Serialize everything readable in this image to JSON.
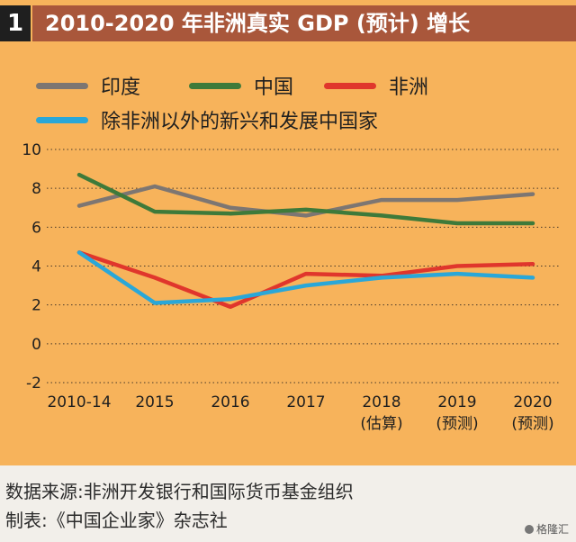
{
  "badge": "1",
  "title": "2010-2020 年非洲真实 GDP (预计) 增长",
  "chart_data": {
    "type": "line",
    "title": "2010-2020 年非洲真实 GDP (预计) 增长",
    "xlabel": "",
    "ylabel": "",
    "categories": [
      "2010-14",
      "2015",
      "2016",
      "2017",
      "2018",
      "2019",
      "2020"
    ],
    "category_notes": [
      "",
      "",
      "",
      "",
      "(估算)",
      "(预测)",
      "(预测)"
    ],
    "y_ticks": [
      -2,
      0,
      2,
      4,
      6,
      8,
      10
    ],
    "ylim": [
      -2,
      10
    ],
    "grid": "horizontal-dotted",
    "series": [
      {
        "name": "印度",
        "color": "#7d7672",
        "values": [
          7.1,
          8.1,
          7.0,
          6.6,
          7.4,
          7.4,
          7.7
        ]
      },
      {
        "name": "中国",
        "color": "#3e7a3a",
        "values": [
          8.7,
          6.8,
          6.7,
          6.9,
          6.6,
          6.2,
          6.2
        ]
      },
      {
        "name": "非洲",
        "color": "#e0362c",
        "values": [
          4.7,
          3.4,
          1.9,
          3.6,
          3.5,
          4.0,
          4.1
        ]
      },
      {
        "name": "除非洲以外的新兴和发展中国家",
        "color": "#2aa7d8",
        "values": [
          4.7,
          2.1,
          2.3,
          3.0,
          3.4,
          3.6,
          3.4
        ]
      }
    ]
  },
  "footer": {
    "source": "数据来源:非洲开发银行和国际货币基金组织",
    "maker": "制表:《中国企业家》杂志社"
  },
  "watermark": "格隆汇"
}
